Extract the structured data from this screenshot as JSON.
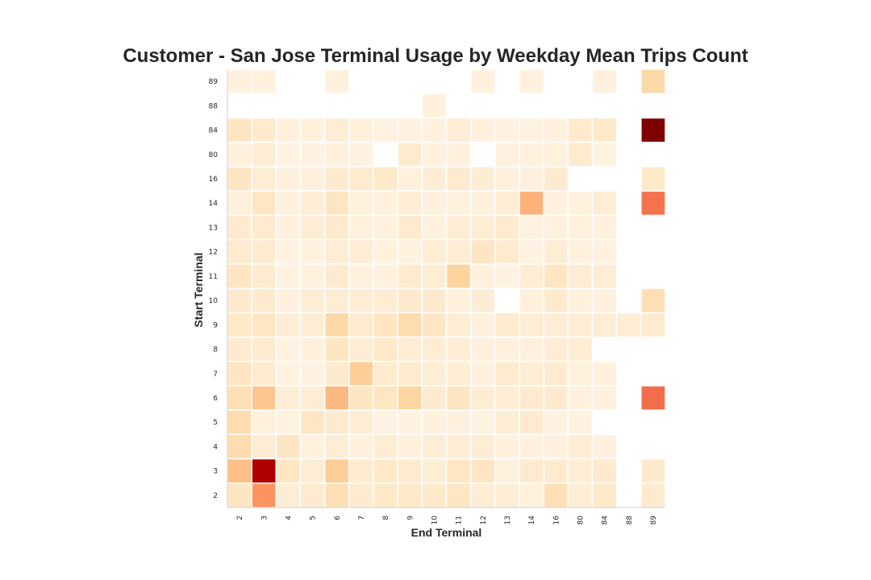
{
  "chart_data": {
    "type": "heatmap",
    "title": "Customer - San Jose Terminal Usage by Weekday Mean Trips Count",
    "xlabel": "End Terminal",
    "ylabel": "Start Terminal",
    "x_categories": [
      "2",
      "3",
      "4",
      "5",
      "6",
      "7",
      "8",
      "9",
      "10",
      "11",
      "12",
      "13",
      "14",
      "16",
      "80",
      "84",
      "88",
      "89"
    ],
    "y_categories": [
      "89",
      "88",
      "84",
      "80",
      "16",
      "14",
      "13",
      "12",
      "11",
      "10",
      "9",
      "8",
      "7",
      "6",
      "5",
      "4",
      "3",
      "2"
    ],
    "colormap": "OrRd",
    "color_range": [
      0,
      1
    ],
    "grid": false,
    "values": [
      [
        0.05,
        0.05,
        null,
        null,
        0.05,
        null,
        null,
        null,
        null,
        null,
        0.05,
        null,
        0.05,
        null,
        null,
        0.05,
        null,
        0.22
      ],
      [
        null,
        null,
        null,
        null,
        null,
        null,
        null,
        null,
        0.05,
        null,
        null,
        null,
        null,
        null,
        null,
        null,
        null,
        null
      ],
      [
        0.14,
        0.1,
        0.05,
        0.05,
        0.08,
        0.05,
        0.04,
        0.04,
        0.05,
        0.08,
        0.05,
        0.04,
        0.04,
        0.05,
        0.1,
        0.12,
        null,
        1.0
      ],
      [
        0.05,
        0.08,
        0.04,
        0.04,
        0.05,
        0.04,
        null,
        0.1,
        0.05,
        0.05,
        null,
        0.05,
        0.05,
        0.05,
        0.1,
        0.04,
        null,
        null
      ],
      [
        0.14,
        0.08,
        0.05,
        0.05,
        0.1,
        0.1,
        0.12,
        0.05,
        0.08,
        0.1,
        0.08,
        0.05,
        0.05,
        0.1,
        null,
        null,
        null,
        0.12
      ],
      [
        0.05,
        0.14,
        0.05,
        0.08,
        0.14,
        0.05,
        0.05,
        0.08,
        0.05,
        0.05,
        0.05,
        0.08,
        0.4,
        0.05,
        0.05,
        0.08,
        null,
        0.58
      ],
      [
        0.1,
        0.1,
        0.05,
        0.08,
        0.1,
        0.05,
        0.05,
        0.1,
        0.05,
        0.08,
        0.08,
        0.1,
        0.04,
        0.05,
        0.05,
        0.05,
        null,
        null
      ],
      [
        0.1,
        0.1,
        0.04,
        0.05,
        0.08,
        0.08,
        0.05,
        0.04,
        0.08,
        0.08,
        0.14,
        0.1,
        0.04,
        0.08,
        0.05,
        0.05,
        null,
        null
      ],
      [
        0.14,
        0.1,
        0.04,
        0.05,
        0.1,
        0.05,
        0.05,
        0.1,
        0.08,
        0.25,
        0.05,
        0.04,
        0.08,
        0.14,
        0.08,
        0.08,
        null,
        null
      ],
      [
        0.1,
        0.1,
        0.05,
        0.08,
        0.08,
        0.08,
        0.08,
        0.1,
        0.1,
        0.05,
        0.08,
        null,
        0.05,
        0.1,
        0.05,
        0.05,
        null,
        0.18
      ],
      [
        0.12,
        0.14,
        0.08,
        0.08,
        0.22,
        0.1,
        0.14,
        0.2,
        0.14,
        0.08,
        0.05,
        0.1,
        0.08,
        0.08,
        0.08,
        0.08,
        0.08,
        0.1
      ],
      [
        0.1,
        0.1,
        0.04,
        0.05,
        0.14,
        0.08,
        0.12,
        0.08,
        0.08,
        0.08,
        0.05,
        0.05,
        0.05,
        0.08,
        0.08,
        null,
        null,
        null
      ],
      [
        0.14,
        0.1,
        0.04,
        0.04,
        0.1,
        0.28,
        0.1,
        0.1,
        0.08,
        0.08,
        0.05,
        0.1,
        0.08,
        0.1,
        0.05,
        0.05,
        null,
        null
      ],
      [
        0.18,
        0.32,
        0.08,
        0.08,
        0.38,
        0.14,
        0.14,
        0.24,
        0.1,
        0.14,
        0.08,
        0.08,
        0.1,
        0.1,
        0.05,
        0.05,
        null,
        0.6
      ],
      [
        0.2,
        0.05,
        0.04,
        0.14,
        0.1,
        0.08,
        0.04,
        0.04,
        0.05,
        0.05,
        0.04,
        0.08,
        0.1,
        0.04,
        0.04,
        null,
        null,
        null
      ],
      [
        0.2,
        0.08,
        0.14,
        0.05,
        0.08,
        0.05,
        0.08,
        0.05,
        0.08,
        0.08,
        0.08,
        0.05,
        0.05,
        0.05,
        0.08,
        0.05,
        null,
        null
      ],
      [
        0.35,
        0.88,
        0.14,
        0.08,
        0.28,
        0.1,
        0.12,
        0.1,
        0.08,
        0.14,
        0.14,
        0.05,
        0.1,
        0.1,
        0.08,
        0.1,
        null,
        0.1
      ],
      [
        0.14,
        0.48,
        0.08,
        0.1,
        0.18,
        0.1,
        0.12,
        0.12,
        0.12,
        0.14,
        0.08,
        0.08,
        0.05,
        0.18,
        0.08,
        0.12,
        null,
        0.1
      ]
    ]
  }
}
